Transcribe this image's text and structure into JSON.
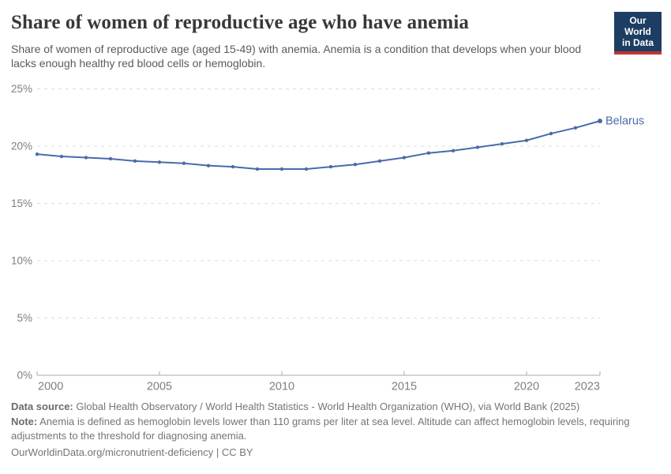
{
  "header": {
    "title": "Share of women of reproductive age who have anemia",
    "subtitle": "Share of women of reproductive age (aged 15-49) with anemia. Anemia is a condition that develops when your blood lacks enough healthy red blood cells or hemoglobin.",
    "logo": {
      "line1": "Our World",
      "line2": "in Data"
    }
  },
  "chart_data": {
    "type": "line",
    "title": "Share of women of reproductive age who have anemia",
    "xlabel": "",
    "ylabel": "",
    "xlim": [
      2000,
      2023
    ],
    "ylim": [
      0,
      25
    ],
    "xticks": [
      2000,
      2005,
      2010,
      2015,
      2020,
      2023
    ],
    "yticks": [
      0,
      5,
      10,
      15,
      20,
      25
    ],
    "ytick_suffix": "%",
    "grid": "horizontal-dashed",
    "legend_position": "end-of-line-label",
    "series": [
      {
        "name": "Belarus",
        "color": "#4a6baa",
        "x": [
          2000,
          2001,
          2002,
          2003,
          2004,
          2005,
          2006,
          2007,
          2008,
          2009,
          2010,
          2011,
          2012,
          2013,
          2014,
          2015,
          2016,
          2017,
          2018,
          2019,
          2020,
          2021,
          2022,
          2023
        ],
        "values": [
          19.3,
          19.1,
          19.0,
          18.9,
          18.7,
          18.6,
          18.5,
          18.3,
          18.2,
          18.0,
          18.0,
          18.0,
          18.2,
          18.4,
          18.7,
          19.0,
          19.4,
          19.6,
          19.9,
          20.2,
          20.5,
          21.1,
          21.6,
          22.2
        ]
      }
    ]
  },
  "footer": {
    "datasource_label": "Data source:",
    "datasource_text": "Global Health Observatory / World Health Statistics - World Health Organization (WHO), via World Bank (2025)",
    "note_label": "Note:",
    "note_text": "Anemia is defined as hemoglobin levels lower than 110 grams per liter at sea level. Altitude can affect hemoglobin levels, requiring adjustments to the threshold for diagnosing anemia.",
    "citation": "OurWorldinData.org/micronutrient-deficiency | CC BY"
  },
  "colors": {
    "line": "#4a6baa",
    "grid": "#dcdcdc",
    "axis": "#a8a8a8",
    "tick_label": "#7f7f7f",
    "title": "#383838",
    "subtitle": "#5b5b5b",
    "footer": "#757575",
    "logo_bg": "#1d3d63",
    "logo_red": "#c0342e"
  }
}
